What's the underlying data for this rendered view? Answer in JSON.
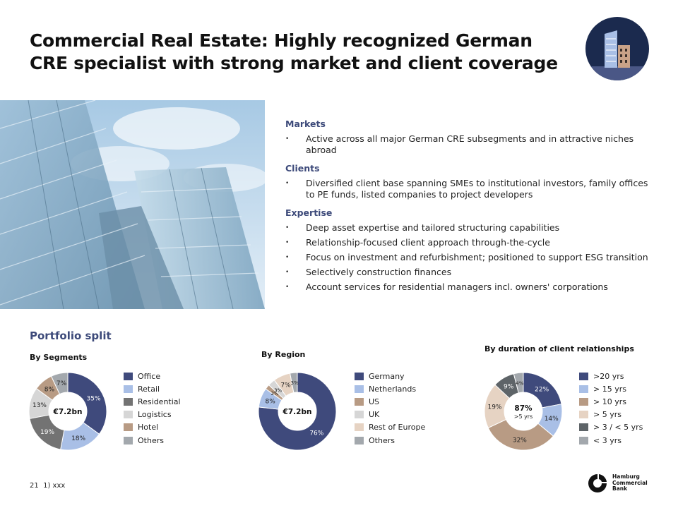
{
  "title": "Commercial Real Estate: Highly recognized German CRE specialist with strong market and client coverage",
  "badge_icon": "buildings-icon",
  "sections": [
    {
      "heading": "Markets",
      "bullets": [
        "Active across all major German CRE subsegments and in attractive niches abroad"
      ]
    },
    {
      "heading": "Clients",
      "bullets": [
        "Diversified client base spanning SMEs to institutional investors, family offices to PE funds, listed companies to project developers"
      ]
    },
    {
      "heading": "Expertise",
      "bullets": [
        "Deep asset expertise and tailored structuring capabilities",
        "Relationship-focused client approach through-the-cycle",
        "Focus on investment and refurbishment; positioned to support ESG transition",
        "Selectively construction finances",
        "Account services for residential managers incl. owners' corporations"
      ]
    }
  ],
  "portfolio_title": "Portfolio split",
  "chart_data": [
    {
      "type": "pie",
      "title": "By Segments",
      "center_label": "€7.2bn",
      "center_sublabel": "",
      "categories": [
        "Office",
        "Retail",
        "Residential",
        "Logistics",
        "Hotel",
        "Others"
      ],
      "values": [
        35,
        18,
        19,
        13,
        8,
        7
      ],
      "labels": [
        "35%",
        "18%",
        "19%",
        "13%",
        "8%",
        "7%"
      ],
      "colors": [
        "#3f4a7c",
        "#a9bfe6",
        "#737373",
        "#d6d6d6",
        "#b89b84",
        "#a3a8ad"
      ]
    },
    {
      "type": "pie",
      "title": "By Region",
      "center_label": "€7.2bn",
      "center_sublabel": "",
      "categories": [
        "Germany",
        "Netherlands",
        "US",
        "UK",
        "Rest of Europe",
        "Others"
      ],
      "values": [
        76,
        8,
        2,
        3,
        7,
        3
      ],
      "labels": [
        "76%",
        "8%",
        "2%",
        "3%",
        "7%",
        "3%"
      ],
      "colors": [
        "#3f4a7c",
        "#a9bfe6",
        "#b89b84",
        "#d6d6d6",
        "#e6d3c3",
        "#a3a8ad"
      ]
    },
    {
      "type": "pie",
      "title": "By duration of client relationships",
      "center_label": "87%",
      "center_sublabel": ">5 yrs",
      "categories": [
        ">20 yrs",
        "> 15 yrs",
        "> 10 yrs",
        "> 5 yrs",
        "> 3 / < 5 yrs",
        "< 3 yrs"
      ],
      "values": [
        22,
        14,
        32,
        19,
        9,
        4
      ],
      "labels": [
        "22%",
        "14%",
        "32%",
        "19%",
        "9%",
        "4%"
      ],
      "colors": [
        "#3f4a7c",
        "#a9bfe6",
        "#b89b84",
        "#e6d3c3",
        "#5e6468",
        "#a3a8ad"
      ]
    }
  ],
  "footer": {
    "page_number": "21",
    "footnote": "1) xxx"
  },
  "logo": {
    "line1": "Hamburg",
    "line2": "Commercial",
    "line3": "Bank"
  }
}
